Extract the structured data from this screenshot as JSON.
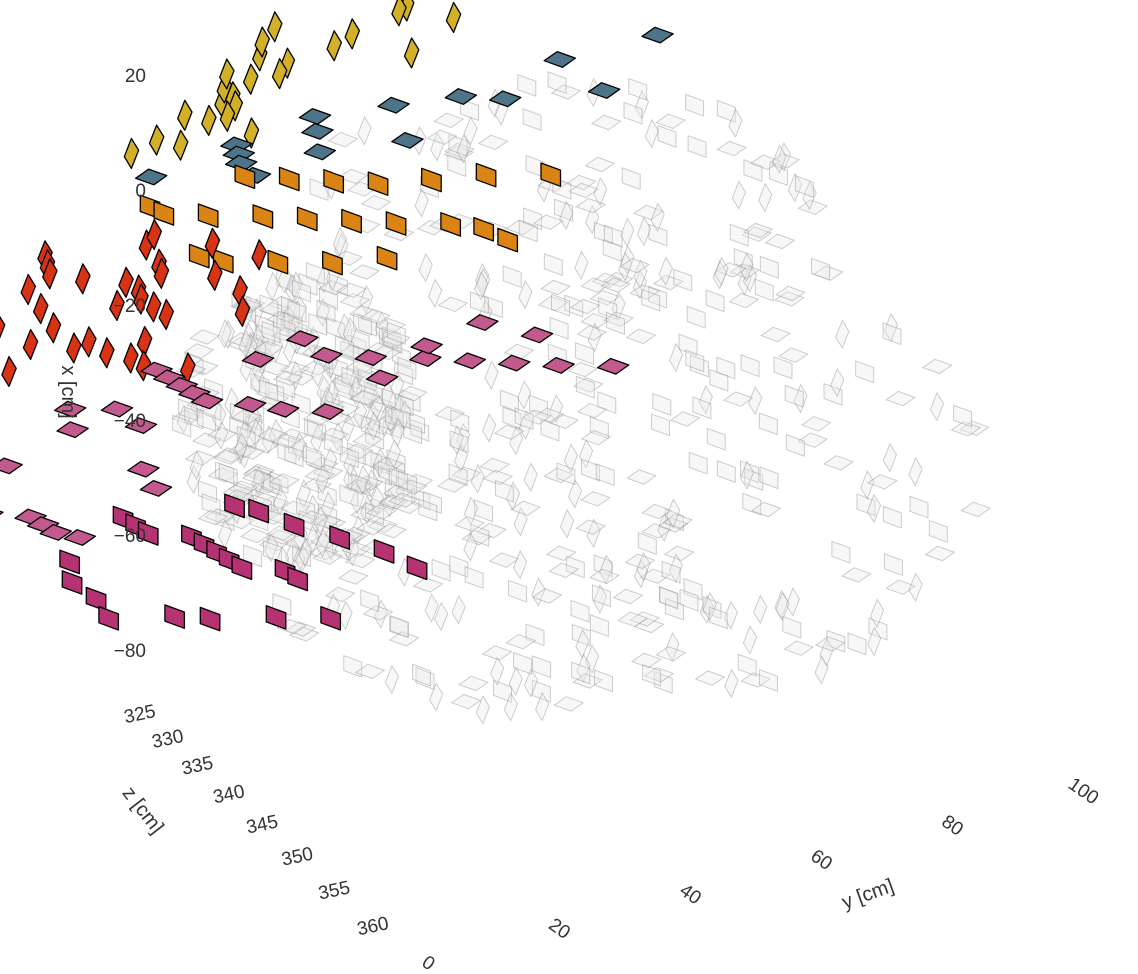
{
  "chart_data": {
    "type": "scatter",
    "projection": "3d",
    "title": "",
    "axes": {
      "x": {
        "label": "x [cm]",
        "ticks": [
          "20",
          "0",
          "−20",
          "−40",
          "−60",
          "−80"
        ],
        "tick_values": [
          20,
          0,
          -20,
          -40,
          -60,
          -80
        ],
        "range": [
          -92,
          28
        ]
      },
      "y": {
        "label": "y [cm]",
        "ticks": [
          "0",
          "20",
          "40",
          "60",
          "80",
          "100"
        ],
        "tick_values": [
          0,
          20,
          40,
          60,
          80,
          100
        ],
        "range": [
          -5,
          110
        ]
      },
      "z": {
        "label": "z [cm]",
        "ticks": [
          "325",
          "330",
          "335",
          "340",
          "345",
          "350",
          "355",
          "360"
        ],
        "tick_values": [
          325,
          330,
          335,
          340,
          345,
          350,
          355,
          360
        ],
        "range": [
          322,
          362
        ]
      }
    },
    "grid": false,
    "legend": "none",
    "series": [
      {
        "color": "#d2b128",
        "points": [
          [
            12,
            18,
            328
          ],
          [
            14,
            22,
            330
          ],
          [
            16,
            26,
            332
          ],
          [
            18,
            30,
            331
          ],
          [
            20,
            34,
            333
          ],
          [
            22,
            38,
            334
          ],
          [
            10,
            24,
            335
          ],
          [
            8,
            30,
            336
          ],
          [
            11,
            36,
            337
          ],
          [
            15,
            42,
            335
          ],
          [
            18,
            48,
            332
          ],
          [
            21,
            54,
            330
          ],
          [
            24,
            60,
            329
          ],
          [
            26,
            66,
            327
          ],
          [
            13,
            46,
            338
          ],
          [
            9,
            40,
            339
          ],
          [
            6,
            28,
            340
          ],
          [
            4,
            34,
            341
          ],
          [
            16,
            52,
            336
          ],
          [
            20,
            58,
            333
          ],
          [
            7,
            44,
            342
          ],
          [
            12,
            62,
            334
          ],
          [
            22,
            70,
            326
          ],
          [
            5,
            20,
            338
          ],
          [
            17,
            64,
            331
          ],
          [
            3,
            50,
            343
          ],
          [
            14,
            32,
            333
          ]
        ]
      },
      {
        "color": "#4d7489",
        "points": [
          [
            2,
            42,
            340
          ],
          [
            0,
            46,
            342
          ],
          [
            -2,
            50,
            344
          ],
          [
            4,
            54,
            339
          ],
          [
            1,
            58,
            341
          ],
          [
            -3,
            62,
            343
          ],
          [
            -1,
            36,
            345
          ],
          [
            3,
            66,
            338
          ],
          [
            -4,
            72,
            340
          ],
          [
            0,
            82,
            336
          ],
          [
            5,
            88,
            334
          ],
          [
            -2,
            94,
            333
          ],
          [
            6,
            98,
            330
          ],
          [
            -5,
            56,
            346
          ],
          [
            2,
            76,
            337
          ]
        ]
      },
      {
        "color": "#d98414",
        "points": [
          [
            -6,
            34,
            344
          ],
          [
            -8,
            40,
            346
          ],
          [
            -10,
            46,
            345
          ],
          [
            -12,
            52,
            343
          ],
          [
            -14,
            58,
            342
          ],
          [
            -16,
            64,
            341
          ],
          [
            -18,
            70,
            340
          ],
          [
            -20,
            76,
            338
          ],
          [
            -22,
            80,
            337
          ],
          [
            -7,
            62,
            346
          ],
          [
            -9,
            68,
            345
          ],
          [
            -11,
            74,
            344
          ],
          [
            -13,
            84,
            339
          ],
          [
            -15,
            90,
            336
          ],
          [
            -17,
            48,
            347
          ],
          [
            -19,
            54,
            348
          ],
          [
            -21,
            60,
            346
          ],
          [
            -23,
            66,
            344
          ],
          [
            -25,
            86,
            338
          ],
          [
            -5,
            56,
            347
          ],
          [
            -12,
            78,
            341
          ],
          [
            -24,
            72,
            342
          ]
        ]
      },
      {
        "color": "#d93316",
        "points": [
          [
            -10,
            12,
            342
          ],
          [
            -12,
            16,
            344
          ],
          [
            -14,
            20,
            346
          ],
          [
            -16,
            24,
            345
          ],
          [
            -18,
            28,
            343
          ],
          [
            -20,
            32,
            344
          ],
          [
            -22,
            36,
            346
          ],
          [
            -24,
            40,
            347
          ],
          [
            -26,
            44,
            348
          ],
          [
            -14,
            10,
            348
          ],
          [
            -18,
            14,
            349
          ],
          [
            -22,
            18,
            350
          ],
          [
            -26,
            22,
            349
          ],
          [
            -28,
            26,
            347
          ],
          [
            -20,
            8,
            351
          ],
          [
            -24,
            12,
            352
          ],
          [
            -28,
            16,
            351
          ],
          [
            -30,
            20,
            350
          ],
          [
            -12,
            28,
            341
          ],
          [
            -16,
            32,
            342
          ],
          [
            -20,
            40,
            341
          ],
          [
            -24,
            48,
            343
          ],
          [
            -28,
            52,
            345
          ],
          [
            -18,
            46,
            340
          ],
          [
            -14,
            36,
            339
          ],
          [
            -10,
            24,
            338
          ],
          [
            -22,
            4,
            353
          ],
          [
            -26,
            8,
            354
          ],
          [
            -30,
            30,
            346
          ],
          [
            -32,
            36,
            347
          ],
          [
            -16,
            18,
            347
          ],
          [
            -20,
            22,
            348
          ],
          [
            -24,
            26,
            349
          ],
          [
            -28,
            34,
            350
          ],
          [
            -30,
            42,
            349
          ],
          [
            -12,
            8,
            346
          ],
          [
            -34,
            40,
            348
          ],
          [
            -36,
            46,
            347
          ],
          [
            -18,
            36,
            344
          ],
          [
            -22,
            30,
            345
          ]
        ]
      },
      {
        "color": "#c25a8d",
        "points": [
          [
            -34,
            28,
            340
          ],
          [
            -36,
            32,
            341
          ],
          [
            -38,
            36,
            342
          ],
          [
            -40,
            40,
            343
          ],
          [
            -42,
            44,
            344
          ],
          [
            -44,
            48,
            342
          ],
          [
            -46,
            52,
            341
          ],
          [
            -38,
            56,
            339
          ],
          [
            -40,
            62,
            338
          ],
          [
            -42,
            68,
            336
          ],
          [
            -44,
            74,
            335
          ],
          [
            -46,
            80,
            334
          ],
          [
            -48,
            86,
            333
          ],
          [
            -50,
            92,
            331
          ],
          [
            -36,
            44,
            339
          ],
          [
            -34,
            50,
            338
          ],
          [
            -38,
            20,
            344
          ],
          [
            -42,
            24,
            346
          ],
          [
            -46,
            16,
            348
          ],
          [
            -50,
            12,
            350
          ],
          [
            -52,
            8,
            352
          ],
          [
            -54,
            18,
            351
          ],
          [
            -56,
            22,
            349
          ],
          [
            -58,
            26,
            350
          ],
          [
            -60,
            30,
            351
          ],
          [
            -62,
            36,
            352
          ],
          [
            -50,
            4,
            354
          ],
          [
            -48,
            10,
            353
          ],
          [
            -40,
            30,
            345
          ],
          [
            -44,
            36,
            346
          ],
          [
            -52,
            40,
            348
          ],
          [
            -56,
            44,
            349
          ],
          [
            -58,
            14,
            355
          ],
          [
            -60,
            6,
            356
          ],
          [
            -64,
            10,
            358
          ],
          [
            -48,
            58,
            340
          ],
          [
            -44,
            64,
            338
          ],
          [
            -40,
            70,
            337
          ],
          [
            -38,
            78,
            336
          ],
          [
            -42,
            84,
            334
          ]
        ]
      },
      {
        "color": "#b63373",
        "points": [
          [
            -60,
            40,
            350
          ],
          [
            -62,
            44,
            351
          ],
          [
            -64,
            48,
            352
          ],
          [
            -66,
            52,
            350
          ],
          [
            -68,
            56,
            351
          ],
          [
            -70,
            60,
            352
          ],
          [
            -72,
            64,
            353
          ],
          [
            -74,
            68,
            354
          ],
          [
            -76,
            72,
            352
          ],
          [
            -78,
            76,
            353
          ],
          [
            -66,
            36,
            353
          ],
          [
            -70,
            40,
            355
          ],
          [
            -74,
            46,
            356
          ],
          [
            -78,
            50,
            357
          ],
          [
            -80,
            58,
            355
          ],
          [
            -82,
            66,
            356
          ],
          [
            -84,
            74,
            354
          ],
          [
            -86,
            80,
            352
          ],
          [
            -62,
            56,
            348
          ],
          [
            -64,
            62,
            349
          ],
          [
            -68,
            70,
            350
          ],
          [
            -72,
            78,
            350
          ],
          [
            -76,
            84,
            349
          ],
          [
            -80,
            88,
            348
          ]
        ]
      },
      {
        "color": "#b98aa6",
        "points": [
          [
            -72,
            -2,
            356
          ],
          [
            -76,
            2,
            358
          ],
          [
            -80,
            6,
            360
          ],
          [
            -84,
            10,
            361
          ],
          [
            -70,
            8,
            355
          ],
          [
            -74,
            12,
            357
          ],
          [
            -78,
            -6,
            359
          ],
          [
            -82,
            0,
            360
          ],
          [
            -86,
            4,
            362
          ],
          [
            -68,
            -4,
            354
          ],
          [
            -88,
            14,
            358
          ],
          [
            -66,
            2,
            353
          ]
        ]
      }
    ]
  }
}
